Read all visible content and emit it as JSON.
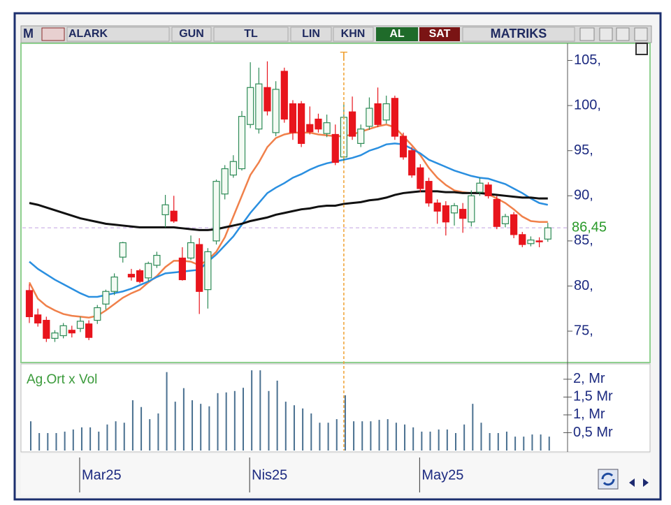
{
  "toolbar": {
    "logo": "M",
    "symbol": "ALARK",
    "period": "GUN",
    "currency": "TL",
    "scale": "LIN",
    "style": "KHN",
    "buy": "AL",
    "sell": "SAT",
    "brand": "MATRIKS"
  },
  "chart_data": [
    {
      "type": "candlestick",
      "categories": [
        null,
        null,
        null,
        null,
        null,
        null,
        "Mar25",
        null,
        null,
        null,
        null,
        null,
        null,
        null,
        null,
        null,
        null,
        null,
        null,
        null,
        null,
        null,
        null,
        null,
        null,
        null,
        "Nis25",
        null,
        null,
        null,
        null,
        null,
        null,
        null,
        null,
        null,
        null,
        null,
        null,
        null,
        null,
        null,
        null,
        null,
        null,
        null,
        "May25",
        null,
        null,
        null,
        null,
        null,
        null,
        null,
        null,
        null,
        null,
        null,
        null,
        null,
        null,
        null
      ],
      "open": [
        79.5,
        76.8,
        76.2,
        74.2,
        74.5,
        75.1,
        75.3,
        75.8,
        76.2,
        78.0,
        79.4,
        83.2,
        81.3,
        81.7,
        80.9,
        82.3,
        87.9,
        88.3,
        83.1,
        83.1,
        84.6,
        79.6,
        85.0,
        90.2,
        92.3,
        93.0,
        97.9,
        97.4,
        102.0,
        97.0,
        103.8,
        100.2,
        100.2,
        97.9,
        98.5,
        96.9,
        96.8,
        94.3,
        99.3,
        95.8,
        97.7,
        100.2,
        98.4,
        100.8,
        96.6,
        95.0,
        93.1,
        91.6,
        89.2,
        88.9,
        88.1,
        88.5,
        87.1,
        90.4,
        91.2,
        89.6,
        86.9,
        87.9,
        85.7,
        84.7,
        85.0,
        85.2
      ],
      "high": [
        80.2,
        77.5,
        76.6,
        75.1,
        75.9,
        75.6,
        76.6,
        76.2,
        77.9,
        79.6,
        81.4,
        84.9,
        81.9,
        81.9,
        82.7,
        83.8,
        90.1,
        90.0,
        84.3,
        85.6,
        85.3,
        84.2,
        91.8,
        93.4,
        94.5,
        99.4,
        104.8,
        104.2,
        104.9,
        102.7,
        104.2,
        100.6,
        100.5,
        99.9,
        99.1,
        99.0,
        97.9,
        100.2,
        101.0,
        97.9,
        100.9,
        102.0,
        101.1,
        101.1,
        97.0,
        95.4,
        93.5,
        92.0,
        89.6,
        89.4,
        89.2,
        89.2,
        90.6,
        92.0,
        91.5,
        90.0,
        88.0,
        88.2,
        86.0,
        85.5,
        85.4,
        87.0
      ],
      "low": [
        75.9,
        75.5,
        73.8,
        73.8,
        74.2,
        74.3,
        74.9,
        74.0,
        75.8,
        77.4,
        79.0,
        82.6,
        80.6,
        80.3,
        80.5,
        82.0,
        86.5,
        87.0,
        80.6,
        82.9,
        76.9,
        77.5,
        84.6,
        89.6,
        92.0,
        92.8,
        97.5,
        96.9,
        98.9,
        96.6,
        98.1,
        96.2,
        95.4,
        96.8,
        97.0,
        96.5,
        93.4,
        93.9,
        96.2,
        95.4,
        97.3,
        97.6,
        98.0,
        96.2,
        94.0,
        92.0,
        90.4,
        88.8,
        86.9,
        85.6,
        86.7,
        85.9,
        86.6,
        90.0,
        89.7,
        86.3,
        86.5,
        85.3,
        84.3,
        84.4,
        84.3,
        84.9
      ],
      "close": [
        76.6,
        75.9,
        74.2,
        74.8,
        75.6,
        74.8,
        76.1,
        74.3,
        77.6,
        79.4,
        81.0,
        84.8,
        81.0,
        80.5,
        82.5,
        83.4,
        89.0,
        87.2,
        80.7,
        84.8,
        79.4,
        83.8,
        91.6,
        93.0,
        93.8,
        98.8,
        102.0,
        102.4,
        99.4,
        101.8,
        98.5,
        97.0,
        95.8,
        97.1,
        97.4,
        98.1,
        93.7,
        98.7,
        96.6,
        97.4,
        99.7,
        97.9,
        100.2,
        96.6,
        94.3,
        92.3,
        90.8,
        89.2,
        88.3,
        87.1,
        88.9,
        87.5,
        90.0,
        91.4,
        90.0,
        86.6,
        87.7,
        85.7,
        84.6,
        85.1,
        84.9,
        86.45
      ],
      "up_color": "#2e8b57",
      "down_color": "#e8141c",
      "lines": [
        {
          "color": "#f0804a",
          "values": [
            80.4,
            78.6,
            77.8,
            77.3,
            76.9,
            76.7,
            76.6,
            76.5,
            76.7,
            77.3,
            78.0,
            78.7,
            79.2,
            79.6,
            80.4,
            81.1,
            82.1,
            82.8,
            82.8,
            82.7,
            82.3,
            82.9,
            83.8,
            85.4,
            87.7,
            90.0,
            92.3,
            93.7,
            95.4,
            96.4,
            96.8,
            97.0,
            97.0,
            97.0,
            96.8,
            96.7,
            96.6,
            96.6,
            96.8,
            97.1,
            97.4,
            97.7,
            97.9,
            97.6,
            96.6,
            95.6,
            94.5,
            93.1,
            92.0,
            91.2,
            90.6,
            90.4,
            90.3,
            90.4,
            90.2,
            89.7,
            89.2,
            88.5,
            87.7,
            87.2,
            87.1,
            87.1
          ]
        },
        {
          "color": "#2a8fe0",
          "values": [
            82.7,
            81.9,
            81.3,
            80.7,
            80.2,
            79.7,
            79.2,
            78.8,
            78.8,
            79.0,
            79.2,
            79.4,
            79.7,
            80.1,
            80.5,
            81.0,
            81.4,
            81.5,
            81.6,
            81.7,
            81.8,
            82.7,
            83.5,
            84.5,
            85.5,
            86.8,
            88.1,
            89.2,
            90.3,
            90.9,
            91.4,
            92.0,
            92.4,
            92.9,
            93.3,
            93.6,
            93.8,
            94.0,
            94.2,
            94.5,
            95.0,
            95.3,
            95.7,
            95.8,
            95.7,
            95.2,
            94.7,
            94.0,
            93.6,
            93.2,
            92.8,
            92.5,
            92.2,
            92.0,
            91.9,
            91.6,
            91.3,
            90.8,
            90.3,
            89.7,
            89.2,
            89.0
          ]
        },
        {
          "color": "#111111",
          "values": [
            89.2,
            89.0,
            88.7,
            88.4,
            88.1,
            87.8,
            87.5,
            87.3,
            87.1,
            86.9,
            86.8,
            86.7,
            86.6,
            86.5,
            86.5,
            86.5,
            86.5,
            86.5,
            86.4,
            86.3,
            86.2,
            86.2,
            86.3,
            86.5,
            86.7,
            86.9,
            87.2,
            87.4,
            87.6,
            87.9,
            88.1,
            88.3,
            88.5,
            88.6,
            88.8,
            88.9,
            88.9,
            89.1,
            89.2,
            89.3,
            89.5,
            89.6,
            89.8,
            90.1,
            90.3,
            90.4,
            90.5,
            90.5,
            90.5,
            90.4,
            90.4,
            90.3,
            90.3,
            90.3,
            90.2,
            90.1,
            90.0,
            89.9,
            89.8,
            89.8,
            89.7,
            89.7
          ]
        }
      ],
      "last_price": {
        "value": 86.45,
        "label": "86,45"
      },
      "cursor": {
        "index": 37,
        "label": "T"
      },
      "ylim": [
        71.6,
        106.9
      ],
      "yticks": [
        {
          "value": 105,
          "label": "105,"
        },
        {
          "value": 100,
          "label": "100,"
        },
        {
          "value": 95,
          "label": "95,"
        },
        {
          "value": 90,
          "label": "90,"
        },
        {
          "value": 85,
          "label": "85,"
        },
        {
          "value": 80,
          "label": "80,"
        },
        {
          "value": 75,
          "label": "75,"
        }
      ]
    },
    {
      "type": "bar",
      "title": "Ag.Ort x Vol",
      "color": "#4a7090",
      "values": [
        0.82,
        0.49,
        0.49,
        0.49,
        0.53,
        0.59,
        0.65,
        0.65,
        0.53,
        0.73,
        0.82,
        0.78,
        1.41,
        1.22,
        0.88,
        1.04,
        2.2,
        1.37,
        1.75,
        1.41,
        1.31,
        1.24,
        1.61,
        1.63,
        1.67,
        1.76,
        2.25,
        2.25,
        1.67,
        1.96,
        1.37,
        1.27,
        1.18,
        1.04,
        0.78,
        0.78,
        0.88,
        1.55,
        0.82,
        0.82,
        0.82,
        0.86,
        0.88,
        0.78,
        0.73,
        0.65,
        0.53,
        0.53,
        0.59,
        0.59,
        0.49,
        0.73,
        1.31,
        0.78,
        0.49,
        0.49,
        0.53,
        0.39,
        0.39,
        0.45,
        0.45,
        0.39
      ],
      "ylim": [
        0,
        2.41
      ],
      "yticks": [
        {
          "value": 2,
          "label": "2, Mr"
        },
        {
          "value": 1.5,
          "label": "1,5 Mr"
        },
        {
          "value": 1,
          "label": "1, Mr"
        },
        {
          "value": 0.5,
          "label": "0,5 Mr"
        }
      ]
    }
  ]
}
